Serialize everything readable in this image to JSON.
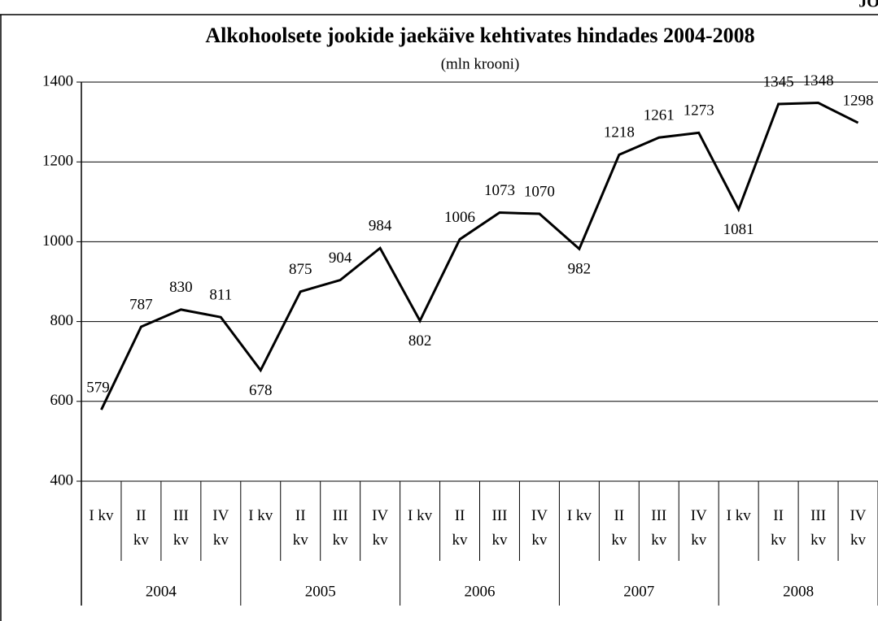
{
  "corner_text": "JO",
  "chart_data": {
    "type": "line",
    "title": "Alkohoolsete jookide jaekäive kehtivates hindades 2004-2008",
    "subtitle": "(mln krooni)",
    "categories": [
      "I kv",
      "II kv",
      "III kv",
      "IV kv",
      "I kv",
      "II kv",
      "III kv",
      "IV kv",
      "I kv",
      "II kv",
      "III kv",
      "IV kv",
      "I kv",
      "II kv",
      "III kv",
      "IV kv",
      "I kv",
      "II kv",
      "III kv",
      "IV kv"
    ],
    "year_labels": [
      "2004",
      "2005",
      "2006",
      "2007",
      "2008"
    ],
    "values": [
      579,
      787,
      830,
      811,
      678,
      875,
      904,
      984,
      802,
      1006,
      1073,
      1070,
      982,
      1218,
      1261,
      1273,
      1081,
      1345,
      1348,
      1298
    ],
    "color": "#000000",
    "ylim": [
      400,
      1400
    ],
    "yticks": [
      400,
      600,
      800,
      1000,
      1200,
      1400
    ],
    "grid": true
  }
}
